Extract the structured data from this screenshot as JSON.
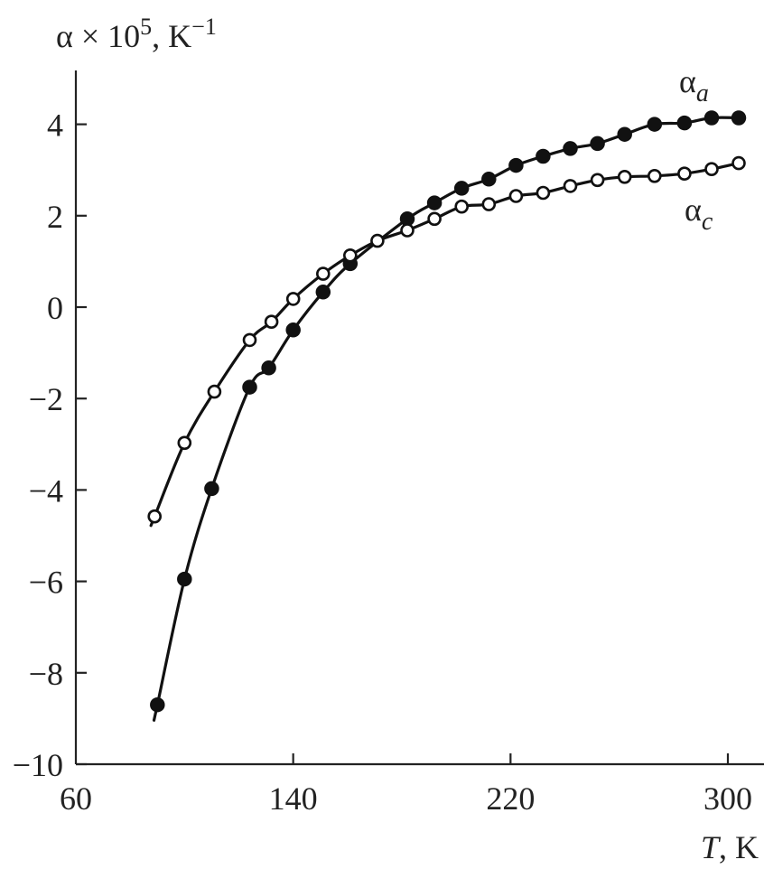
{
  "chart_data": {
    "type": "scatter",
    "ylabel": "α × 10",
    "ylabel_exponent": "5",
    "ylabel_unit": ", K",
    "ylabel_unit_exponent": "−1",
    "xlabel_var": "T",
    "xlabel_unit": ", K",
    "xlim": [
      60,
      313
    ],
    "ylim": [
      -10,
      5.3
    ],
    "x_ticks": [
      60,
      140,
      220,
      300
    ],
    "x_tick_labels": [
      "60",
      "140",
      "220",
      "300"
    ],
    "y_ticks": [
      4,
      2,
      0,
      -2,
      -4,
      -6,
      -8,
      -10
    ],
    "y_tick_labels": [
      "4",
      "2",
      "0",
      "−2",
      "−4",
      "−6",
      "−8",
      "−10"
    ],
    "grid": false,
    "series": [
      {
        "name": "α",
        "subscript": "a",
        "marker": "filled-circle",
        "fit_curve": true,
        "x": [
          90,
          100,
          110,
          124,
          131,
          140,
          151,
          161,
          182,
          192,
          202,
          212,
          222,
          232,
          242,
          252,
          262,
          273,
          284,
          294,
          304
        ],
        "y": [
          -8.7,
          -5.95,
          -3.97,
          -1.75,
          -1.33,
          -0.5,
          0.33,
          0.95,
          1.93,
          2.28,
          2.6,
          2.8,
          3.1,
          3.3,
          3.47,
          3.58,
          3.78,
          4.0,
          4.03,
          4.14,
          4.14
        ]
      },
      {
        "name": "α",
        "subscript": "c",
        "marker": "open-circle",
        "fit_curve": true,
        "x": [
          89,
          100,
          111,
          124,
          132,
          140,
          151,
          161,
          171,
          182,
          192,
          202,
          212,
          222,
          232,
          242,
          252,
          262,
          273,
          284,
          294,
          304
        ],
        "y": [
          -4.58,
          -2.97,
          -1.85,
          -0.72,
          -0.32,
          0.18,
          0.73,
          1.13,
          1.45,
          1.68,
          1.93,
          2.2,
          2.25,
          2.43,
          2.5,
          2.65,
          2.78,
          2.85,
          2.87,
          2.92,
          3.02,
          3.15
        ]
      }
    ]
  }
}
